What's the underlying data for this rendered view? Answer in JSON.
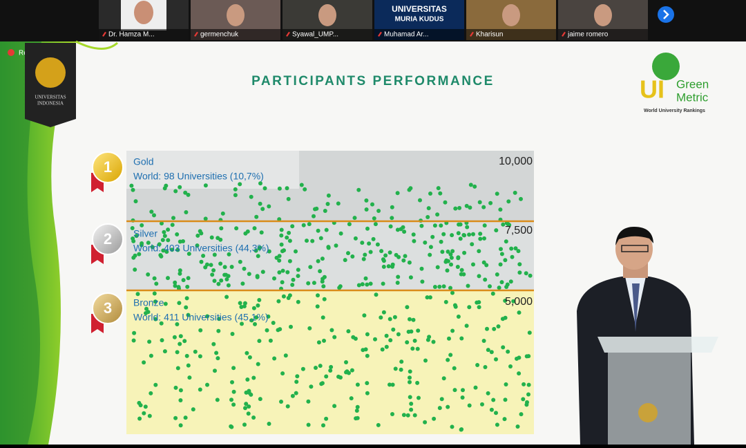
{
  "meeting": {
    "recording": "Recording",
    "participants": [
      {
        "name": "Dr. Hamza M..."
      },
      {
        "name": "germenchuk"
      },
      {
        "name": "Syawal_UMP..."
      },
      {
        "name": "Muhamad Ar..."
      },
      {
        "name": "Kharisun"
      },
      {
        "name": "jaime romero"
      }
    ],
    "tile_text": [
      "UNIVERSITAS",
      "MURIA KUDUS"
    ]
  },
  "slide": {
    "title": "PARTICIPANTS PERFORMANCE",
    "badge": [
      "UNIVERSITAS",
      "INDONESIA"
    ],
    "logo": {
      "ui": "UI",
      "line1": "Green",
      "line2": "Metric",
      "tagline": "World University Rankings"
    },
    "levels": [
      {
        "medal": "1",
        "name": "Gold",
        "detail": "World: 98 Universities (10,7%)",
        "score": "10,000"
      },
      {
        "medal": "2",
        "name": "Silver",
        "detail": "World: 403 Universities (44,3%)",
        "score": "7,500"
      },
      {
        "medal": "3",
        "name": "Bronze",
        "detail": "World: 411 Universities (45,1%)",
        "score": "5,000"
      }
    ]
  }
}
